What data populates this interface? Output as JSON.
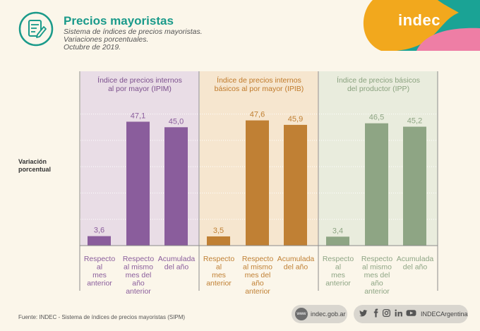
{
  "header": {
    "title": "Precios mayoristas",
    "subtitle_lines": [
      "Sistema de índices de precios mayoristas.",
      "Variaciones porcentuales.",
      "Octubre de 2019."
    ],
    "brand": "indec"
  },
  "ylabel_lines": [
    "Variación",
    "porcentual"
  ],
  "chart_data": {
    "type": "bar",
    "ylabel": "Variación porcentual",
    "ylim": [
      0,
      55
    ],
    "categories": [
      [
        "Respecto",
        "al",
        "mes",
        "anterior"
      ],
      [
        "Respecto",
        "al mismo",
        "mes del",
        "año",
        "anterior"
      ],
      [
        "Acumulada",
        "del año"
      ]
    ],
    "groups": [
      {
        "title": [
          "Índice de precios internos",
          "al por mayor (IPIM)"
        ],
        "color": "#8a5d9c",
        "bg": "#e9dde6",
        "title_color": "#7b4f8d",
        "values": [
          3.6,
          47.1,
          45.0
        ],
        "labels": [
          "3,6",
          "47,1",
          "45,0"
        ]
      },
      {
        "title": [
          "Índice de precios internos",
          "básicos al por mayor (IPIB)"
        ],
        "color": "#c08034",
        "bg": "#f6e6cf",
        "title_color": "#c07a2a",
        "values": [
          3.5,
          47.6,
          45.9
        ],
        "labels": [
          "3,5",
          "47,6",
          "45,9"
        ]
      },
      {
        "title": [
          "Índice de precios básicos",
          "del productor (IPP)"
        ],
        "color": "#8ea584",
        "bg": "#e9ecdd",
        "title_color": "#8aa27f",
        "values": [
          3.4,
          46.5,
          45.2
        ],
        "labels": [
          "3,4",
          "46,5",
          "45,2"
        ]
      }
    ]
  },
  "footer": {
    "source": "Fuente: INDEC - Sistema de índices de precios mayoristas (SIPM)",
    "web_icon_text": "www",
    "website": "indec.gob.ar",
    "social_handle": "INDECArgentina",
    "social_icons": [
      "twitter-icon",
      "facebook-icon",
      "instagram-icon",
      "linkedin-icon",
      "youtube-icon"
    ]
  },
  "colors": {
    "teal": "#1a9a8a",
    "brand_orange": "#f2a81d",
    "brand_pink": "#ee7ea5",
    "brand_teal": "#1aa395"
  }
}
